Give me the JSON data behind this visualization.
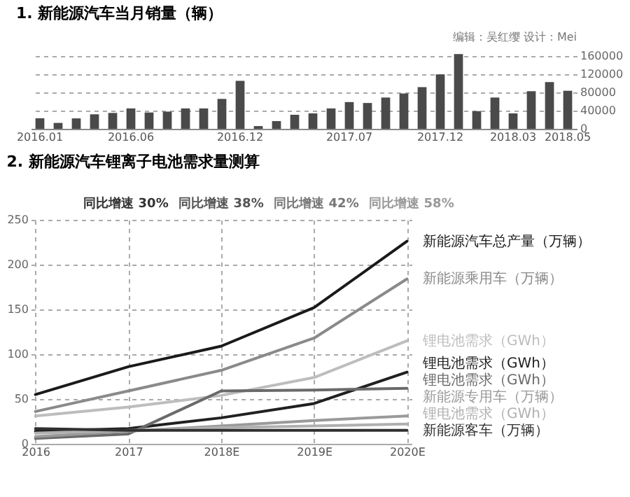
{
  "chart_data": [
    {
      "type": "bar",
      "title": "1. 新能源汽车当月销量（辆）",
      "categories": [
        "2016.01",
        null,
        null,
        null,
        null,
        "2016.06",
        null,
        null,
        null,
        null,
        null,
        "2016.12",
        null,
        null,
        null,
        null,
        null,
        "2017.07",
        null,
        null,
        null,
        null,
        "2017.12",
        null,
        null,
        null,
        "2018.03",
        null,
        null,
        "2018.05"
      ],
      "values": [
        23000,
        13000,
        23000,
        32000,
        35000,
        45000,
        36000,
        38000,
        45000,
        45000,
        66000,
        106000,
        6000,
        17000,
        31000,
        34000,
        45000,
        59000,
        57000,
        69000,
        78000,
        92000,
        120000,
        165000,
        39000,
        69000,
        34000,
        83000,
        103000,
        84000
      ],
      "color": "#4a4a4a",
      "ylim": [
        0,
        170000
      ],
      "yticks": [
        0,
        40000,
        80000,
        120000,
        160000
      ],
      "grid": "y",
      "annotations": [
        "编辑：吴红缨 设计：Mei"
      ]
    },
    {
      "type": "line",
      "title": "2. 新能源汽车锂离子电池需求量测算",
      "categories": [
        "2016",
        "2017",
        "2018E",
        "2019E",
        "2020E"
      ],
      "series": [
        {
          "name": "新能源汽车总产量（万辆）",
          "color": "#1a1a1a",
          "values": [
            55,
            86,
            109,
            152,
            226
          ]
        },
        {
          "name": "新能源乘用车（万辆）",
          "color": "#8a8a8a",
          "values": [
            36,
            59,
            82,
            118,
            184
          ]
        },
        {
          "name": "锂电池需求（GWh）",
          "color": "#bdbdbd",
          "values": [
            31,
            41,
            54,
            74,
            115
          ]
        },
        {
          "name": "锂电池需求（GWh）",
          "color": "#202020",
          "values": [
            14,
            17,
            29,
            45,
            80
          ]
        },
        {
          "name": "锂电池需求（GWh）",
          "color": "#6a6a6a",
          "values": [
            6,
            11,
            59,
            60,
            62
          ]
        },
        {
          "name": "新能源专用车（万辆）",
          "color": "#9a9a9a",
          "values": [
            8,
            14,
            20,
            26,
            31
          ]
        },
        {
          "name": "锂电池需求（GWh）",
          "color": "#b0b0b0",
          "values": [
            12,
            15,
            18,
            20,
            22
          ]
        },
        {
          "name": "新能源客车（万辆）",
          "color": "#303030",
          "values": [
            17,
            15,
            15,
            15,
            15
          ]
        }
      ],
      "ylim": [
        0,
        250
      ],
      "yticks": [
        0,
        50,
        100,
        150,
        200,
        250
      ],
      "grid": true,
      "annotations": [
        "同比增速 30%",
        "同比增速 38%",
        "同比增速 42%",
        "同比增速 58%"
      ]
    }
  ]
}
